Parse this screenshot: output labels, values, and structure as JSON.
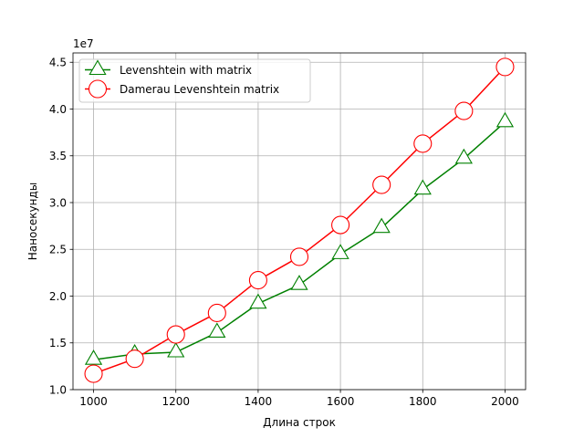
{
  "chart_data": {
    "type": "line",
    "title": "",
    "xlabel": "Длина строк",
    "ylabel": "Наносекунды",
    "y_offset_label": "1e7",
    "y_scale": 10000000,
    "xlim": [
      950,
      2050
    ],
    "ylim": [
      10000000,
      46000000
    ],
    "x_ticks": [
      1000,
      1200,
      1400,
      1600,
      1800,
      2000
    ],
    "x_tick_labels": [
      "1000",
      "1200",
      "1400",
      "1600",
      "1800",
      "2000"
    ],
    "y_ticks": [
      10000000,
      15000000,
      20000000,
      25000000,
      30000000,
      35000000,
      40000000,
      45000000
    ],
    "y_tick_labels": [
      "1.0",
      "1.5",
      "2.0",
      "2.5",
      "3.0",
      "3.5",
      "4.0",
      "4.5"
    ],
    "grid": true,
    "legend_position": "top-left",
    "x": [
      1000,
      1100,
      1200,
      1300,
      1400,
      1500,
      1600,
      1700,
      1800,
      1900,
      2000
    ],
    "series": [
      {
        "name": "Levenshtein with matrix",
        "color": "#008000",
        "marker": "triangle",
        "values": [
          13200000,
          13800000,
          14000000,
          16100000,
          19200000,
          21200000,
          24500000,
          27300000,
          31400000,
          34700000,
          38600000
        ]
      },
      {
        "name": "Damerau Levenshtein matrix",
        "color": "#ff0000",
        "marker": "circle",
        "values": [
          11700000,
          13300000,
          15900000,
          18200000,
          21700000,
          24200000,
          27600000,
          31900000,
          36300000,
          39800000,
          44500000
        ]
      }
    ]
  }
}
